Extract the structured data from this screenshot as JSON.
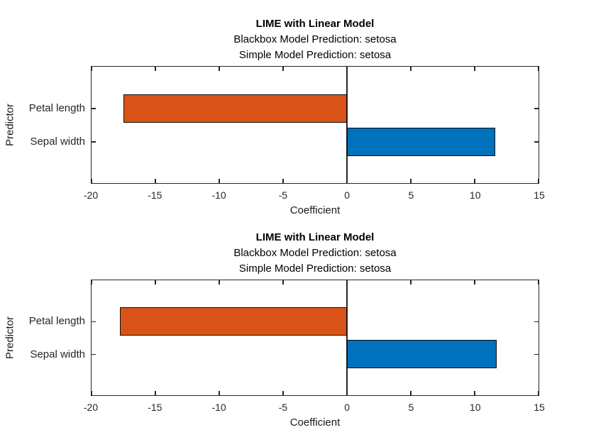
{
  "figure": {
    "background": "#ffffff"
  },
  "colors": {
    "axis": "#262626",
    "tick_text": "#262626",
    "label_text": "#1a1a1a",
    "title_text": "#000000",
    "bar_border": "#0d0d0d",
    "negative_bar": "#D95319",
    "positive_bar": "#0072BD"
  },
  "chart_data": [
    {
      "type": "bar",
      "orientation": "horizontal",
      "title": "LIME with Linear Model",
      "subtitle_lines": [
        "Blackbox Model Prediction: setosa",
        "Simple Model Prediction: setosa"
      ],
      "xlabel": "Coefficient",
      "ylabel": "Predictor",
      "categories": [
        "Petal length",
        "Sepal width"
      ],
      "values": [
        -17.5,
        11.6
      ],
      "bar_colors": [
        "#D95319",
        "#0072BD"
      ],
      "xlim": [
        -20,
        15
      ],
      "xticks": [
        -20,
        -15,
        -10,
        -5,
        0,
        5,
        10,
        15
      ],
      "grid": false,
      "legend": "none",
      "box": true
    },
    {
      "type": "bar",
      "orientation": "horizontal",
      "title": "LIME with Linear Model",
      "subtitle_lines": [
        "Blackbox Model Prediction: setosa",
        "Simple Model Prediction: setosa"
      ],
      "xlabel": "Coefficient",
      "ylabel": "Predictor",
      "categories": [
        "Petal length",
        "Sepal width"
      ],
      "values": [
        -17.8,
        11.7
      ],
      "bar_colors": [
        "#D95319",
        "#0072BD"
      ],
      "xlim": [
        -20,
        15
      ],
      "xticks": [
        -20,
        -15,
        -10,
        -5,
        0,
        5,
        10,
        15
      ],
      "grid": false,
      "legend": "none",
      "box": true
    }
  ]
}
